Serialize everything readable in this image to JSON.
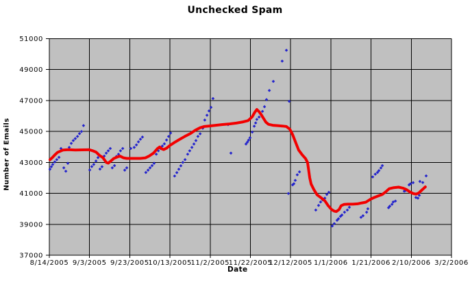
{
  "chart_data": {
    "type": "scatter",
    "title": "Unchecked Spam",
    "xlabel": "Date",
    "ylabel": "Number of Emails",
    "legend": "none",
    "grid": "on",
    "plot_bg_color": "#c0c0c0",
    "grid_color": "#000000",
    "scatter_color": "#2525cc",
    "line_color": "#f20000",
    "x_tick_labels": [
      "8/14/2005",
      "9/3/2005",
      "9/23/2005",
      "10/13/2005",
      "11/2/2005",
      "11/22/2005",
      "12/12/2005",
      "1/1/2006",
      "1/21/2006",
      "2/10/2006",
      "3/2/2006"
    ],
    "x_range_days": [
      0,
      200
    ],
    "x_tick_step_days": 20,
    "y_ticks": [
      37000,
      39000,
      41000,
      43000,
      45000,
      47000,
      49000,
      51000
    ],
    "ylim": [
      37000,
      51000
    ],
    "series": [
      {
        "name": "daily-emails-scatter",
        "style": "points",
        "points": [
          [
            0.3,
            42560
          ],
          [
            1,
            42720
          ],
          [
            1.7,
            42870
          ],
          [
            2.7,
            43030
          ],
          [
            3.7,
            43180
          ],
          [
            4.8,
            43330
          ],
          [
            5.8,
            43900
          ],
          [
            7.2,
            42650
          ],
          [
            8.2,
            42430
          ],
          [
            9.2,
            42940
          ],
          [
            9.9,
            43970
          ],
          [
            10.9,
            44230
          ],
          [
            11.9,
            44410
          ],
          [
            12.9,
            44540
          ],
          [
            14,
            44680
          ],
          [
            15,
            44860
          ],
          [
            16,
            45000
          ],
          [
            17,
            45380
          ],
          [
            20.1,
            42510
          ],
          [
            21.1,
            42730
          ],
          [
            22.1,
            42870
          ],
          [
            23.2,
            43090
          ],
          [
            24.2,
            43310
          ],
          [
            25.2,
            42570
          ],
          [
            26.2,
            42720
          ],
          [
            27.3,
            43410
          ],
          [
            28.3,
            43600
          ],
          [
            29.3,
            43750
          ],
          [
            30.3,
            43900
          ],
          [
            31.3,
            42650
          ],
          [
            32.4,
            42790
          ],
          [
            33.4,
            43390
          ],
          [
            34.4,
            43530
          ],
          [
            35.4,
            43750
          ],
          [
            36.5,
            43900
          ],
          [
            37.5,
            42500
          ],
          [
            38.5,
            42650
          ],
          [
            40.5,
            43900
          ],
          [
            42.2,
            43970
          ],
          [
            43.3,
            44130
          ],
          [
            44.3,
            44330
          ],
          [
            45.3,
            44500
          ],
          [
            46.3,
            44640
          ],
          [
            48,
            42350
          ],
          [
            49.1,
            42500
          ],
          [
            50.1,
            42650
          ],
          [
            51.1,
            42790
          ],
          [
            52.1,
            42940
          ],
          [
            53.2,
            43530
          ],
          [
            54.2,
            43750
          ],
          [
            55.2,
            43900
          ],
          [
            56.2,
            44060
          ],
          [
            57.2,
            44200
          ],
          [
            58.3,
            44450
          ],
          [
            59.3,
            44680
          ],
          [
            60.3,
            44900
          ],
          [
            62.3,
            42120
          ],
          [
            63.4,
            42340
          ],
          [
            64.4,
            42560
          ],
          [
            65.4,
            42780
          ],
          [
            66.4,
            43000
          ],
          [
            67.5,
            43180
          ],
          [
            68.8,
            43530
          ],
          [
            69.8,
            43750
          ],
          [
            70.9,
            43970
          ],
          [
            71.9,
            44190
          ],
          [
            72.9,
            44410
          ],
          [
            73.9,
            44680
          ],
          [
            75,
            44850
          ],
          [
            76.3,
            45210
          ],
          [
            77.3,
            45740
          ],
          [
            78.4,
            46050
          ],
          [
            79.4,
            46330
          ],
          [
            80.4,
            46560
          ],
          [
            81.4,
            47130
          ],
          [
            88.9,
            45440
          ],
          [
            90.3,
            43600
          ],
          [
            97.8,
            44190
          ],
          [
            98.5,
            44310
          ],
          [
            99.1,
            44440
          ],
          [
            99.8,
            44590
          ],
          [
            100.9,
            44960
          ],
          [
            101.9,
            45340
          ],
          [
            102.6,
            45550
          ],
          [
            103.2,
            45780
          ],
          [
            104.3,
            45930
          ],
          [
            105.3,
            46100
          ],
          [
            106,
            46300
          ],
          [
            107,
            46600
          ],
          [
            108,
            47060
          ],
          [
            109.4,
            47650
          ],
          [
            111.4,
            48240
          ],
          [
            115.8,
            49550
          ],
          [
            117.9,
            50250
          ],
          [
            118.9,
            40990
          ],
          [
            119.3,
            46950
          ],
          [
            121,
            41550
          ],
          [
            121.6,
            41620
          ],
          [
            122.3,
            41840
          ],
          [
            123.3,
            42200
          ],
          [
            124.4,
            42390
          ],
          [
            132.5,
            39920
          ],
          [
            133.9,
            40220
          ],
          [
            134.9,
            40440
          ],
          [
            135.9,
            40580
          ],
          [
            137,
            40690
          ],
          [
            138,
            40930
          ],
          [
            139,
            41070
          ],
          [
            140.7,
            38890
          ],
          [
            141.7,
            39040
          ],
          [
            143.1,
            39260
          ],
          [
            143.8,
            39360
          ],
          [
            144.8,
            39510
          ],
          [
            145.5,
            39600
          ],
          [
            146.8,
            39780
          ],
          [
            148.2,
            39920
          ],
          [
            149.2,
            40100
          ],
          [
            155,
            39450
          ],
          [
            156,
            39550
          ],
          [
            157.8,
            39780
          ],
          [
            158.4,
            40000
          ],
          [
            160.8,
            42060
          ],
          [
            162.1,
            42240
          ],
          [
            163.2,
            42350
          ],
          [
            163.9,
            42470
          ],
          [
            164.9,
            42640
          ],
          [
            165.6,
            42790
          ],
          [
            168.7,
            40070
          ],
          [
            169.3,
            40170
          ],
          [
            170.4,
            40290
          ],
          [
            171,
            40440
          ],
          [
            172.1,
            40500
          ],
          [
            176.5,
            41140
          ],
          [
            177.2,
            41180
          ],
          [
            178.9,
            41550
          ],
          [
            179.6,
            41620
          ],
          [
            180.9,
            41690
          ],
          [
            182.3,
            40730
          ],
          [
            183.3,
            40690
          ],
          [
            184,
            40870
          ],
          [
            184.3,
            41770
          ],
          [
            185.7,
            41700
          ],
          [
            187.4,
            42130
          ]
        ]
      },
      {
        "name": "moving-average-line",
        "style": "line",
        "points": [
          [
            0.3,
            43170
          ],
          [
            1.4,
            43300
          ],
          [
            2.7,
            43480
          ],
          [
            4.1,
            43650
          ],
          [
            5.5,
            43730
          ],
          [
            6.8,
            43800
          ],
          [
            9.5,
            43820
          ],
          [
            12.9,
            43800
          ],
          [
            16.4,
            43810
          ],
          [
            19.8,
            43820
          ],
          [
            21.8,
            43740
          ],
          [
            23.2,
            43670
          ],
          [
            24.9,
            43460
          ],
          [
            26.6,
            43310
          ],
          [
            28.3,
            43000
          ],
          [
            29.3,
            42950
          ],
          [
            30.7,
            43100
          ],
          [
            32,
            43250
          ],
          [
            33.4,
            43330
          ],
          [
            35.1,
            43410
          ],
          [
            36.8,
            43300
          ],
          [
            38.5,
            43260
          ],
          [
            41.9,
            43260
          ],
          [
            45.3,
            43260
          ],
          [
            47.7,
            43290
          ],
          [
            49.7,
            43420
          ],
          [
            51.8,
            43600
          ],
          [
            53.8,
            43900
          ],
          [
            54.9,
            44000
          ],
          [
            55.9,
            43880
          ],
          [
            56.9,
            43830
          ],
          [
            58.3,
            43920
          ],
          [
            60,
            44100
          ],
          [
            62.3,
            44300
          ],
          [
            64.7,
            44480
          ],
          [
            67.5,
            44690
          ],
          [
            70.2,
            44870
          ],
          [
            72.6,
            45080
          ],
          [
            75,
            45240
          ],
          [
            77,
            45320
          ],
          [
            79.4,
            45350
          ],
          [
            82.8,
            45400
          ],
          [
            86.2,
            45450
          ],
          [
            89.6,
            45490
          ],
          [
            93,
            45540
          ],
          [
            96.4,
            45620
          ],
          [
            98.8,
            45700
          ],
          [
            100.9,
            45950
          ],
          [
            102.2,
            46250
          ],
          [
            103.2,
            46420
          ],
          [
            104.3,
            46280
          ],
          [
            105.3,
            46100
          ],
          [
            106.3,
            45890
          ],
          [
            107.7,
            45600
          ],
          [
            109,
            45460
          ],
          [
            111.1,
            45400
          ],
          [
            113.5,
            45380
          ],
          [
            115.8,
            45350
          ],
          [
            117.9,
            45320
          ],
          [
            119.6,
            45150
          ],
          [
            121,
            44800
          ],
          [
            122.3,
            44350
          ],
          [
            124,
            43800
          ],
          [
            125.7,
            43500
          ],
          [
            127.4,
            43250
          ],
          [
            128.4,
            43000
          ],
          [
            129.5,
            42000
          ],
          [
            130.2,
            41600
          ],
          [
            131.5,
            41250
          ],
          [
            133.2,
            40900
          ],
          [
            135.3,
            40700
          ],
          [
            137,
            40520
          ],
          [
            138.7,
            40200
          ],
          [
            140.4,
            39950
          ],
          [
            141.7,
            39850
          ],
          [
            142.7,
            39820
          ],
          [
            144.1,
            39950
          ],
          [
            145.1,
            40200
          ],
          [
            146.5,
            40280
          ],
          [
            148.5,
            40300
          ],
          [
            150.9,
            40300
          ],
          [
            153.3,
            40320
          ],
          [
            155.4,
            40380
          ],
          [
            157.4,
            40430
          ],
          [
            159.5,
            40600
          ],
          [
            161.5,
            40730
          ],
          [
            163.5,
            40830
          ],
          [
            165.6,
            40930
          ],
          [
            167.3,
            41100
          ],
          [
            169,
            41300
          ],
          [
            171,
            41360
          ],
          [
            173.7,
            41400
          ],
          [
            175.8,
            41340
          ],
          [
            177.5,
            41250
          ],
          [
            179.2,
            41100
          ],
          [
            180.9,
            40990
          ],
          [
            182.3,
            40950
          ],
          [
            183.6,
            41010
          ],
          [
            185,
            41180
          ],
          [
            186,
            41300
          ],
          [
            187,
            41420
          ]
        ]
      }
    ]
  }
}
